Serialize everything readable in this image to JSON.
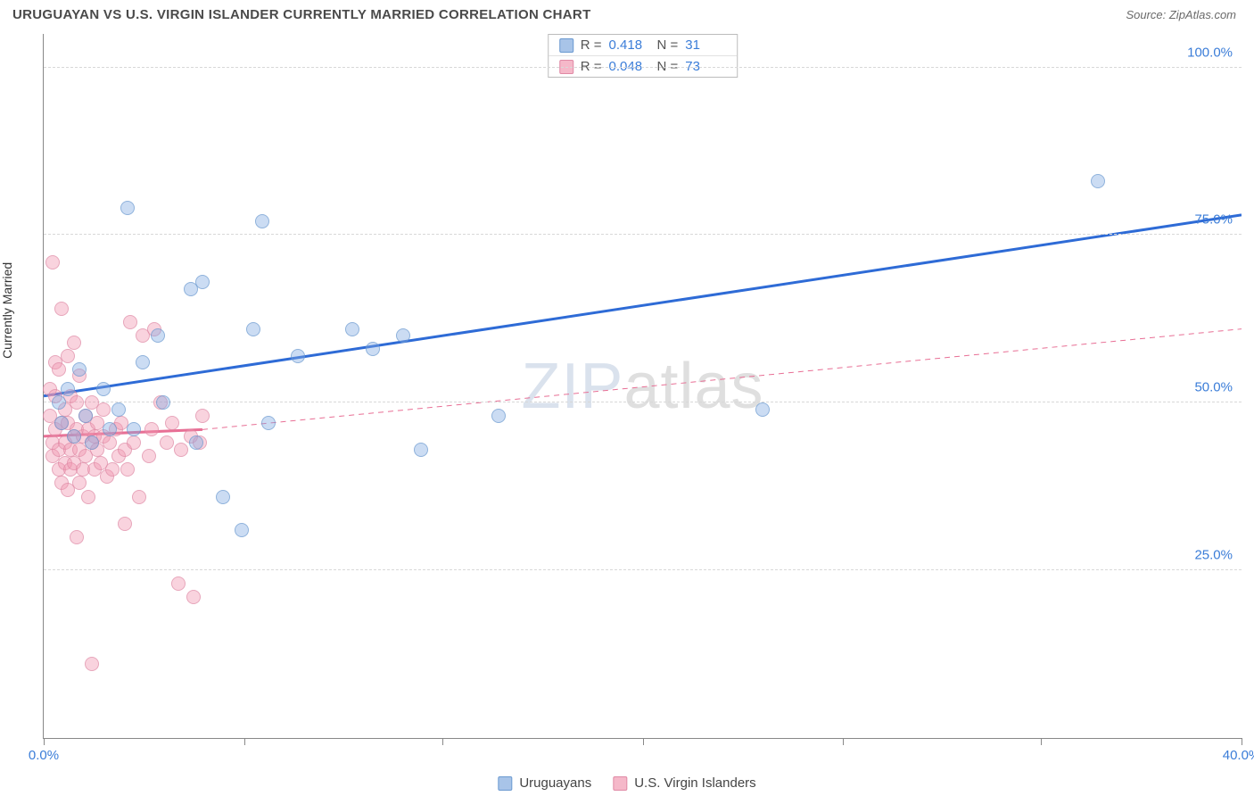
{
  "title": "URUGUAYAN VS U.S. VIRGIN ISLANDER CURRENTLY MARRIED CORRELATION CHART",
  "source": "Source: ZipAtlas.com",
  "ylabel": "Currently Married",
  "watermark_a": "ZIP",
  "watermark_b": "atlas",
  "chart": {
    "type": "scatter",
    "background_color": "#ffffff",
    "grid_color": "#d8d8d8",
    "marker_radius": 8,
    "xlim": [
      0,
      40
    ],
    "ylim": [
      0,
      105
    ],
    "xticks": [
      0,
      6.7,
      13.3,
      20,
      26.7,
      33.3,
      40
    ],
    "xtick_labels": {
      "0": "0.0%",
      "40": "40.0%"
    },
    "yticks": [
      25,
      50,
      75,
      100
    ],
    "ytick_labels": {
      "25": "25.0%",
      "50": "50.0%",
      "75": "75.0%",
      "100": "100.0%"
    }
  },
  "stats": {
    "series_a": {
      "R_label": "R =",
      "R": "0.418",
      "N_label": "N =",
      "N": "31"
    },
    "series_b": {
      "R_label": "R =",
      "R": "0.048",
      "N_label": "N =",
      "N": "73"
    }
  },
  "legend": {
    "a": "Uruguayans",
    "b": "U.S. Virgin Islanders"
  },
  "series_a": {
    "name": "Uruguayans",
    "color_fill": "#a8c4e8",
    "color_stroke": "#6a99d0",
    "trend": {
      "x1": 0,
      "y1": 51,
      "x2": 40,
      "y2": 78,
      "color": "#2e6bd6",
      "width": 3,
      "dash": "none"
    },
    "points": [
      [
        0.5,
        50
      ],
      [
        0.6,
        47
      ],
      [
        0.8,
        52
      ],
      [
        1.0,
        45
      ],
      [
        1.2,
        55
      ],
      [
        1.4,
        48
      ],
      [
        1.6,
        44
      ],
      [
        2.0,
        52
      ],
      [
        2.2,
        46
      ],
      [
        2.5,
        49
      ],
      [
        2.8,
        79
      ],
      [
        3.0,
        46
      ],
      [
        3.3,
        56
      ],
      [
        3.8,
        60
      ],
      [
        4.0,
        50
      ],
      [
        4.9,
        67
      ],
      [
        5.3,
        68
      ],
      [
        5.1,
        44
      ],
      [
        6.0,
        36
      ],
      [
        6.6,
        31
      ],
      [
        7.0,
        61
      ],
      [
        7.3,
        77
      ],
      [
        7.5,
        47
      ],
      [
        8.5,
        57
      ],
      [
        10.3,
        61
      ],
      [
        11.0,
        58
      ],
      [
        12.0,
        60
      ],
      [
        12.6,
        43
      ],
      [
        15.2,
        48
      ],
      [
        24.0,
        49
      ],
      [
        35.2,
        83
      ]
    ]
  },
  "series_b": {
    "name": "U.S. Virgin Islanders",
    "color_fill": "#f5b8c9",
    "color_stroke": "#e089a5",
    "trend_solid": {
      "x1": 0,
      "y1": 45,
      "x2": 5.3,
      "y2": 46,
      "color": "#e86f95",
      "width": 3,
      "dash": "none"
    },
    "trend_dash": {
      "x1": 5.3,
      "y1": 46,
      "x2": 40,
      "y2": 61,
      "color": "#e86f95",
      "width": 1,
      "dash": "6,5"
    },
    "points": [
      [
        0.2,
        48
      ],
      [
        0.2,
        52
      ],
      [
        0.3,
        42
      ],
      [
        0.3,
        71
      ],
      [
        0.3,
        44
      ],
      [
        0.4,
        56
      ],
      [
        0.4,
        46
      ],
      [
        0.4,
        51
      ],
      [
        0.5,
        40
      ],
      [
        0.5,
        43
      ],
      [
        0.5,
        55
      ],
      [
        0.6,
        38
      ],
      [
        0.6,
        47
      ],
      [
        0.6,
        64
      ],
      [
        0.7,
        41
      ],
      [
        0.7,
        49
      ],
      [
        0.7,
        44
      ],
      [
        0.8,
        57
      ],
      [
        0.8,
        37
      ],
      [
        0.8,
        47
      ],
      [
        0.9,
        43
      ],
      [
        0.9,
        51
      ],
      [
        0.9,
        40
      ],
      [
        1.0,
        45
      ],
      [
        1.0,
        59
      ],
      [
        1.0,
        41
      ],
      [
        1.1,
        30
      ],
      [
        1.1,
        46
      ],
      [
        1.1,
        50
      ],
      [
        1.2,
        43
      ],
      [
        1.2,
        38
      ],
      [
        1.2,
        54
      ],
      [
        1.3,
        45
      ],
      [
        1.3,
        40
      ],
      [
        1.4,
        48
      ],
      [
        1.4,
        42
      ],
      [
        1.5,
        46
      ],
      [
        1.5,
        36
      ],
      [
        1.6,
        44
      ],
      [
        1.6,
        50
      ],
      [
        1.6,
        11
      ],
      [
        1.7,
        45
      ],
      [
        1.7,
        40
      ],
      [
        1.8,
        47
      ],
      [
        1.8,
        43
      ],
      [
        1.9,
        41
      ],
      [
        2.0,
        45
      ],
      [
        2.0,
        49
      ],
      [
        2.1,
        39
      ],
      [
        2.2,
        44
      ],
      [
        2.3,
        40
      ],
      [
        2.4,
        46
      ],
      [
        2.5,
        42
      ],
      [
        2.6,
        47
      ],
      [
        2.7,
        43
      ],
      [
        2.7,
        32
      ],
      [
        2.8,
        40
      ],
      [
        2.9,
        62
      ],
      [
        3.0,
        44
      ],
      [
        3.2,
        36
      ],
      [
        3.3,
        60
      ],
      [
        3.5,
        42
      ],
      [
        3.6,
        46
      ],
      [
        3.7,
        61
      ],
      [
        3.9,
        50
      ],
      [
        4.1,
        44
      ],
      [
        4.3,
        47
      ],
      [
        4.5,
        23
      ],
      [
        4.6,
        43
      ],
      [
        4.9,
        45
      ],
      [
        5.0,
        21
      ],
      [
        5.2,
        44
      ],
      [
        5.3,
        48
      ]
    ]
  }
}
